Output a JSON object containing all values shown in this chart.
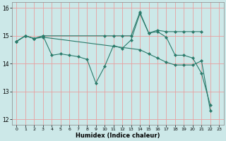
{
  "xlabel": "Humidex (Indice chaleur)",
  "bg_color": "#cce8e8",
  "grid_color": "#e8a0a0",
  "line_color": "#2a7a6a",
  "xlim": [
    -0.5,
    23.5
  ],
  "ylim": [
    11.8,
    16.2
  ],
  "xticks": [
    0,
    1,
    2,
    3,
    4,
    5,
    6,
    7,
    8,
    9,
    10,
    11,
    12,
    13,
    14,
    15,
    16,
    17,
    18,
    19,
    20,
    21,
    22,
    23
  ],
  "yticks": [
    12,
    13,
    14,
    15,
    16
  ],
  "series1_x": [
    0,
    1,
    2,
    3,
    4,
    5,
    6,
    7,
    8,
    9,
    10,
    11,
    12,
    13,
    14,
    15,
    16,
    17,
    18,
    19,
    20,
    21,
    22
  ],
  "series1_y": [
    14.8,
    15.0,
    14.9,
    15.0,
    14.3,
    14.35,
    14.3,
    14.25,
    14.15,
    13.3,
    13.9,
    14.65,
    14.55,
    14.85,
    15.8,
    15.1,
    15.15,
    14.95,
    14.3,
    14.3,
    14.2,
    13.65,
    12.5
  ],
  "series2_x": [
    0,
    1,
    2,
    3,
    10,
    11,
    12,
    13,
    14,
    15,
    16,
    17,
    18,
    19,
    20,
    21
  ],
  "series2_y": [
    14.8,
    15.0,
    14.9,
    15.0,
    15.0,
    15.0,
    15.0,
    15.0,
    15.85,
    15.1,
    15.2,
    15.15,
    15.15,
    15.15,
    15.15,
    15.15
  ],
  "series3_x": [
    0,
    1,
    2,
    3,
    14,
    15,
    16,
    17,
    18,
    19,
    20,
    21,
    22
  ],
  "series3_y": [
    14.8,
    15.0,
    14.9,
    14.95,
    14.5,
    14.35,
    14.2,
    14.05,
    13.95,
    13.95,
    13.95,
    14.1,
    12.3
  ]
}
